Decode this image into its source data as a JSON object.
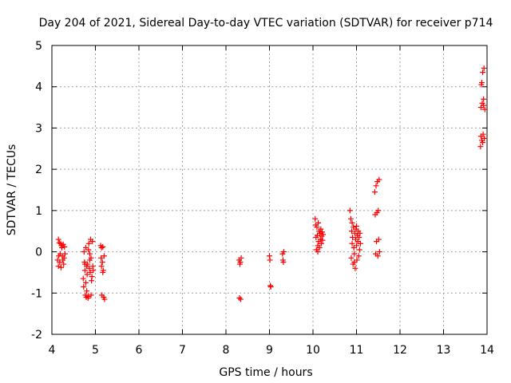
{
  "chart_data": {
    "type": "scatter",
    "title": "Day 204 of 2021, Sidereal Day-to-day VTEC variation (SDTVAR) for receiver p714",
    "xlabel": "GPS time / hours",
    "ylabel": "SDTVAR / TECUs",
    "xlim": [
      4,
      14
    ],
    "ylim": [
      -2,
      5
    ],
    "xticks": [
      "4",
      "5",
      "6",
      "7",
      "8",
      "9",
      "10",
      "11",
      "12",
      "13",
      "14"
    ],
    "yticks": [
      "-2",
      "-1",
      "0",
      "1",
      "2",
      "3",
      "4",
      "5"
    ],
    "grid": true,
    "marker": "plus",
    "series": [
      {
        "name": "SDTVAR",
        "color": "#ff0000",
        "points": [
          [
            4.15,
            0.3
          ],
          [
            4.17,
            0.22
          ],
          [
            4.19,
            -0.05
          ],
          [
            4.2,
            0.2
          ],
          [
            4.22,
            0.15
          ],
          [
            4.24,
            -0.1
          ],
          [
            4.25,
            -0.2
          ],
          [
            4.26,
            0.18
          ],
          [
            4.27,
            -0.3
          ],
          [
            4.28,
            -0.15
          ],
          [
            4.15,
            -0.35
          ],
          [
            4.18,
            -0.25
          ],
          [
            4.21,
            -0.38
          ],
          [
            4.23,
            0.1
          ],
          [
            4.16,
            -0.1
          ],
          [
            4.29,
            0.12
          ],
          [
            4.3,
            -0.05
          ],
          [
            4.13,
            -0.2
          ],
          [
            4.72,
            -0.65
          ],
          [
            4.73,
            -0.85
          ],
          [
            4.74,
            0.0
          ],
          [
            4.75,
            -0.25
          ],
          [
            4.76,
            -0.45
          ],
          [
            4.77,
            -1.05
          ],
          [
            4.78,
            0.1
          ],
          [
            4.79,
            -1.1
          ],
          [
            4.8,
            -0.35
          ],
          [
            4.8,
            -0.95
          ],
          [
            4.81,
            -0.55
          ],
          [
            4.82,
            -0.3
          ],
          [
            4.83,
            -1.12
          ],
          [
            4.84,
            0.05
          ],
          [
            4.85,
            0.2
          ],
          [
            4.86,
            -0.4
          ],
          [
            4.87,
            -0.05
          ],
          [
            4.88,
            -0.5
          ],
          [
            4.89,
            0.3
          ],
          [
            4.9,
            -0.15
          ],
          [
            4.91,
            -0.7
          ],
          [
            4.92,
            -0.6
          ],
          [
            4.93,
            0.25
          ],
          [
            4.94,
            -0.35
          ],
          [
            4.95,
            -0.45
          ],
          [
            4.78,
            -0.75
          ],
          [
            4.84,
            -1.08
          ],
          [
            4.87,
            -0.2
          ],
          [
            4.9,
            -1.05
          ],
          [
            4.76,
            -0.3
          ],
          [
            5.12,
            0.15
          ],
          [
            5.13,
            -0.15
          ],
          [
            5.14,
            -0.35
          ],
          [
            5.15,
            -1.05
          ],
          [
            5.16,
            -0.25
          ],
          [
            5.17,
            0.12
          ],
          [
            5.18,
            -0.45
          ],
          [
            5.19,
            -1.1
          ],
          [
            5.2,
            -0.1
          ],
          [
            5.21,
            -1.15
          ],
          [
            5.14,
            0.1
          ],
          [
            5.17,
            -0.5
          ],
          [
            8.3,
            -0.2
          ],
          [
            8.31,
            -1.12
          ],
          [
            8.32,
            -0.3
          ],
          [
            8.33,
            -0.25
          ],
          [
            8.34,
            -1.15
          ],
          [
            8.35,
            -0.15
          ],
          [
            9.0,
            -0.1
          ],
          [
            9.01,
            -0.2
          ],
          [
            9.02,
            -0.82
          ],
          [
            9.03,
            -0.85
          ],
          [
            9.3,
            -0.05
          ],
          [
            9.31,
            -0.2
          ],
          [
            9.32,
            -0.25
          ],
          [
            9.33,
            0.0
          ],
          [
            10.05,
            0.8
          ],
          [
            10.07,
            0.35
          ],
          [
            10.08,
            0.05
          ],
          [
            10.09,
            0.6
          ],
          [
            10.1,
            0.4
          ],
          [
            10.11,
            0.15
          ],
          [
            10.12,
            0.7
          ],
          [
            10.13,
            0.25
          ],
          [
            10.14,
            0.5
          ],
          [
            10.15,
            0.1
          ],
          [
            10.16,
            0.45
          ],
          [
            10.17,
            0.3
          ],
          [
            10.18,
            0.55
          ],
          [
            10.19,
            0.2
          ],
          [
            10.2,
            0.38
          ],
          [
            10.21,
            0.48
          ],
          [
            10.22,
            0.28
          ],
          [
            10.23,
            0.42
          ],
          [
            10.11,
            0.0
          ],
          [
            10.06,
            0.65
          ],
          [
            10.85,
            1.0
          ],
          [
            10.87,
            0.8
          ],
          [
            10.88,
            -0.15
          ],
          [
            10.89,
            0.5
          ],
          [
            10.9,
            0.2
          ],
          [
            10.91,
            0.35
          ],
          [
            10.92,
            -0.3
          ],
          [
            10.93,
            0.6
          ],
          [
            10.94,
            0.1
          ],
          [
            10.95,
            -0.05
          ],
          [
            10.96,
            0.45
          ],
          [
            10.97,
            -0.4
          ],
          [
            10.98,
            0.3
          ],
          [
            10.99,
            0.55
          ],
          [
            11.0,
            0.15
          ],
          [
            11.01,
            -0.2
          ],
          [
            11.02,
            0.4
          ],
          [
            11.03,
            0.25
          ],
          [
            11.04,
            0.5
          ],
          [
            11.05,
            -0.1
          ],
          [
            11.06,
            0.35
          ],
          [
            11.07,
            0.05
          ],
          [
            11.08,
            0.45
          ],
          [
            11.09,
            0.2
          ],
          [
            10.9,
            0.7
          ],
          [
            10.95,
            -0.25
          ],
          [
            11.0,
            0.62
          ],
          [
            11.42,
            1.45
          ],
          [
            11.43,
            0.9
          ],
          [
            11.44,
            -0.05
          ],
          [
            11.45,
            1.6
          ],
          [
            11.46,
            0.25
          ],
          [
            11.47,
            0.95
          ],
          [
            11.48,
            1.7
          ],
          [
            11.49,
            -0.1
          ],
          [
            11.5,
            1.0
          ],
          [
            11.51,
            0.3
          ],
          [
            11.52,
            1.75
          ],
          [
            11.53,
            0.0
          ],
          [
            13.85,
            2.55
          ],
          [
            13.86,
            3.5
          ],
          [
            13.87,
            4.05
          ],
          [
            13.88,
            2.7
          ],
          [
            13.89,
            3.6
          ],
          [
            13.9,
            4.35
          ],
          [
            13.91,
            2.85
          ],
          [
            13.92,
            3.55
          ],
          [
            13.93,
            4.45
          ],
          [
            13.94,
            2.75
          ],
          [
            13.95,
            3.45
          ],
          [
            13.88,
            4.1
          ],
          [
            13.9,
            2.65
          ],
          [
            13.92,
            3.7
          ],
          [
            13.86,
            2.8
          ]
        ]
      }
    ]
  }
}
